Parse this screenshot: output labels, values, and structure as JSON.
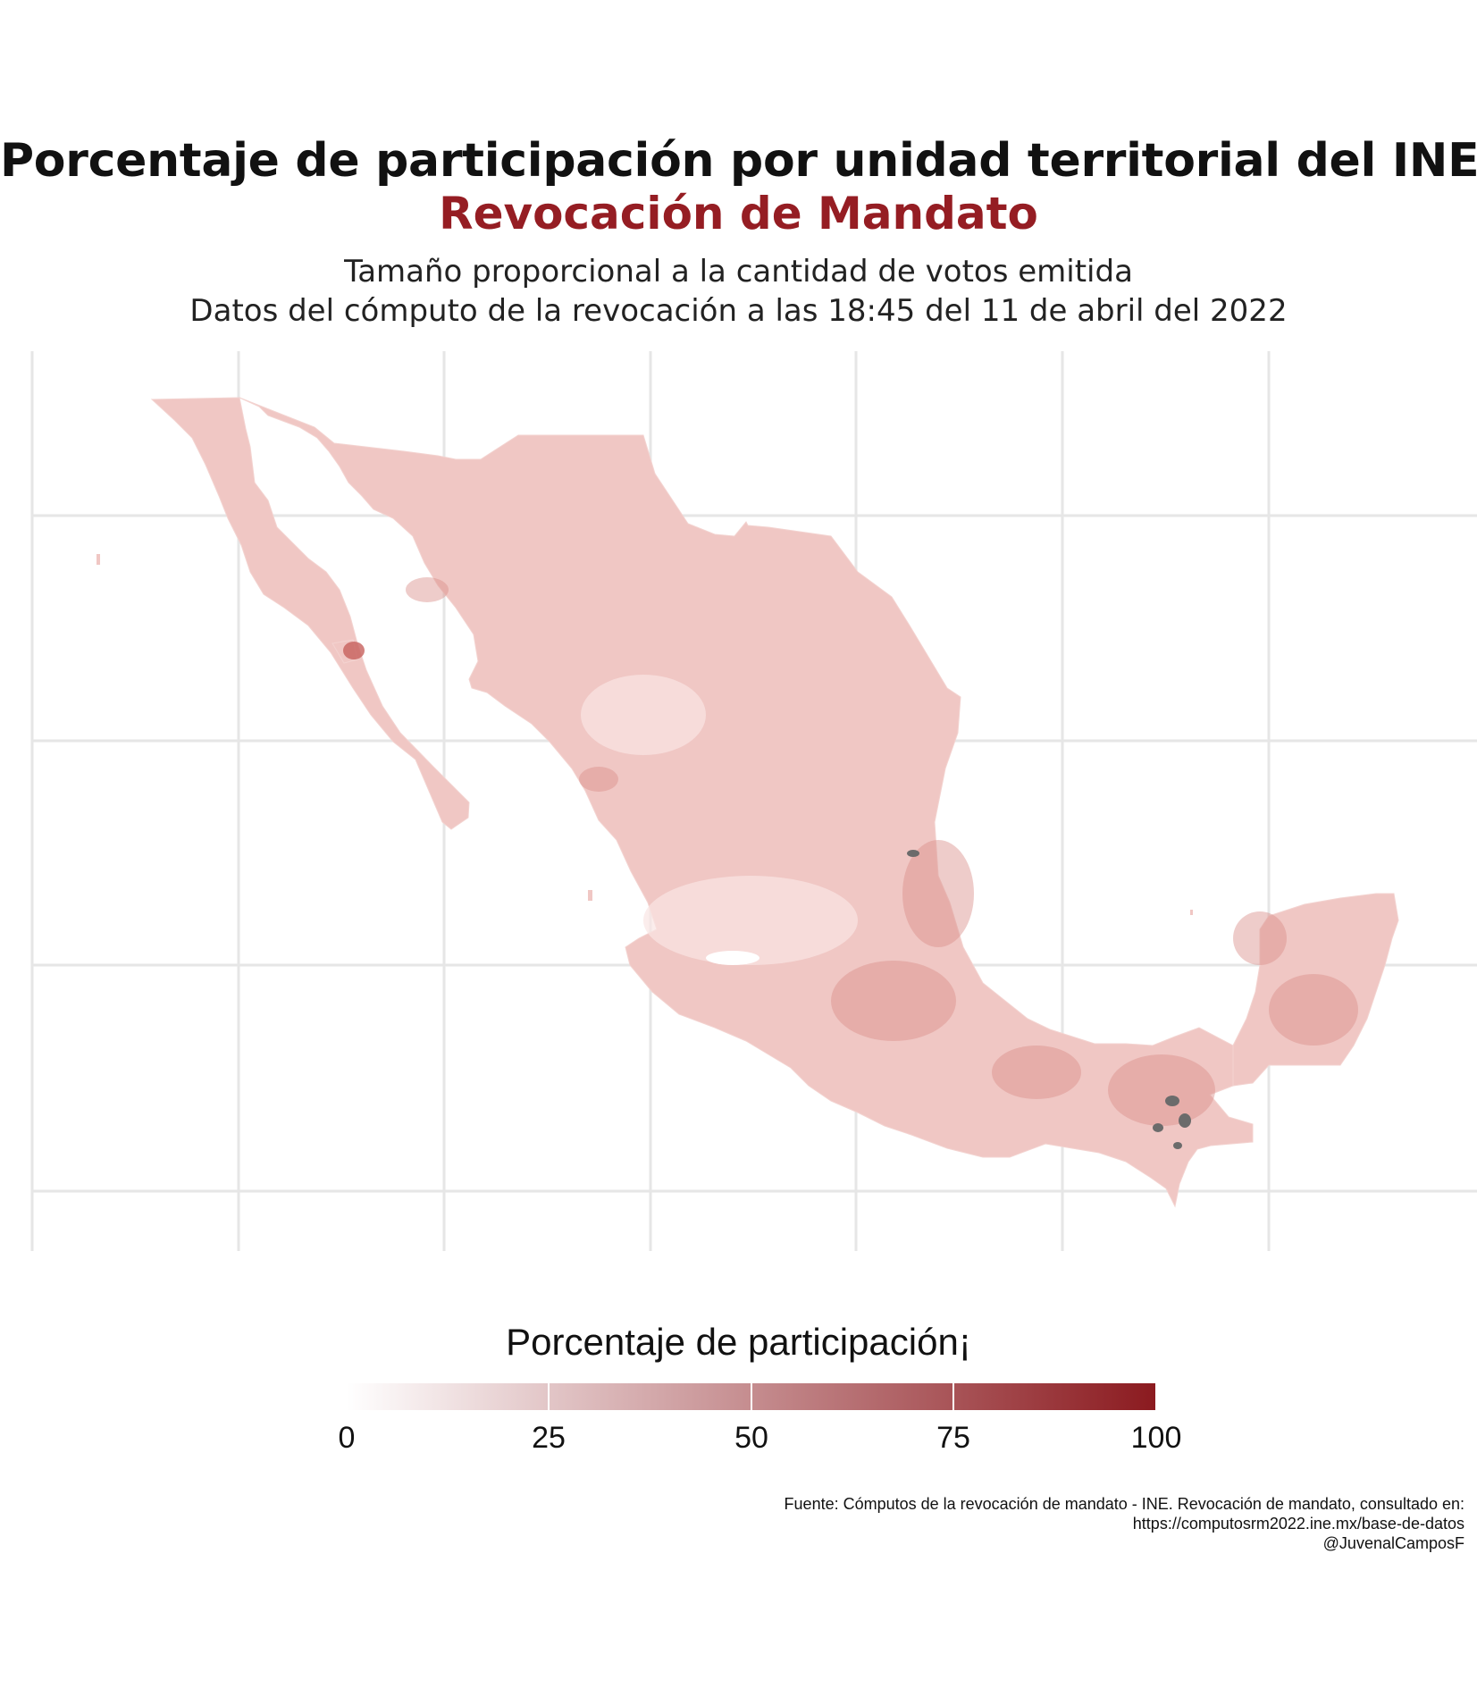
{
  "title": "Porcentaje de participación por unidad territorial del INE",
  "subtitle": "Revocación de Mandato",
  "description_lines": [
    "Tamaño proporcional a la cantidad de votos emitida",
    "Datos del cómputo de la revocación a las 18:45 del 11 de abril del 2022"
  ],
  "legend": {
    "title": "Porcentaje de participación¡",
    "ticks": [
      "0",
      "25",
      "50",
      "75",
      "100"
    ],
    "scale_min": 0,
    "scale_max": 100,
    "color_low": "#ffffff",
    "color_high": "#8b1a1f"
  },
  "map": {
    "region": "México",
    "fill_typical": "#f0c7c4",
    "fill_low": "#f9e6e4",
    "fill_high": "#d98d89",
    "missing_color": "#6b6b6b",
    "gridline_color": "#e6e6e6"
  },
  "caption": [
    "Fuente: Cómputos de la revocación de mandato - INE. Revocación de mandato, consultado en:",
    "https://computosrm2022.ine.mx/base-de-datos",
    "@JuvenalCamposF"
  ]
}
